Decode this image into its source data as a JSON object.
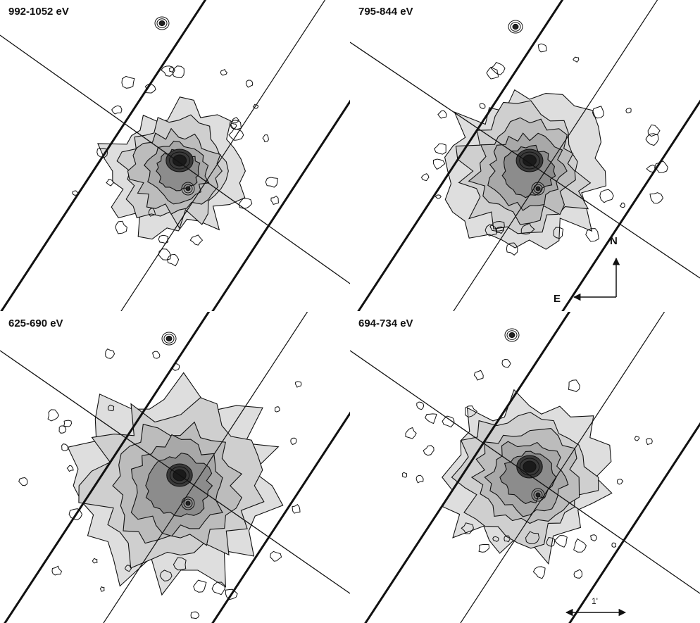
{
  "figure": {
    "panels": [
      {
        "label": "992-1052 eV",
        "position": "top-left",
        "core_intensity": 1.0,
        "halo_extent": 0.75,
        "secondary_source": true
      },
      {
        "label": "795-844 eV",
        "position": "top-right",
        "core_intensity": 0.95,
        "halo_extent": 0.9,
        "secondary_source": true
      },
      {
        "label": "625-690 eV",
        "position": "bottom-left",
        "core_intensity": 0.8,
        "halo_extent": 1.15,
        "secondary_source": true
      },
      {
        "label": "694-734 eV",
        "position": "bottom-right",
        "core_intensity": 0.8,
        "halo_extent": 0.9,
        "secondary_source": true
      }
    ],
    "compass": {
      "north": "N",
      "east": "E"
    },
    "scale_bar": {
      "label": "1'"
    },
    "colors": {
      "contour": "#111111",
      "halo": "#bdbdbd",
      "core": "#1a1a1a",
      "background": "#ffffff"
    }
  }
}
